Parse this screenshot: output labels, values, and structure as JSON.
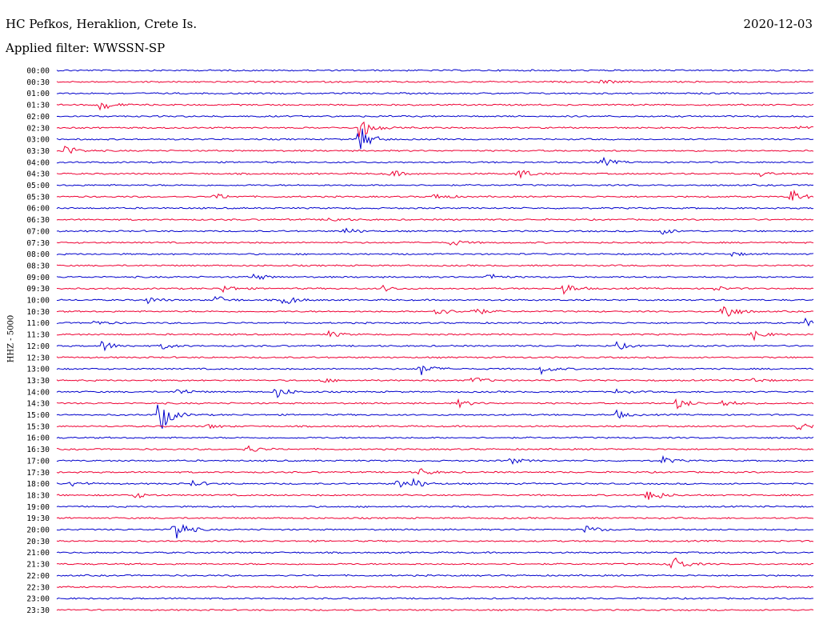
{
  "header": {
    "station": "HC Pefkos, Heraklion, Crete Is.",
    "filter": "Applied filter: WWSSN-SP",
    "date": "2020-12-03",
    "channel": "HHZ - 5000"
  },
  "colors": {
    "odd_trace": "#0000cc",
    "even_trace": "#ee0033"
  },
  "chart_data": {
    "type": "line",
    "x_axis": "time within each 30-minute line",
    "rows": [
      {
        "label": "00:00",
        "events": []
      },
      {
        "label": "00:30",
        "events": [
          {
            "t": 0.72,
            "a": 3
          }
        ]
      },
      {
        "label": "01:00",
        "events": []
      },
      {
        "label": "01:30",
        "events": [
          {
            "t": 0.058,
            "a": 8
          }
        ]
      },
      {
        "label": "02:00",
        "events": []
      },
      {
        "label": "02:30",
        "events": [
          {
            "t": 0.4,
            "a": 15
          },
          {
            "t": 0.98,
            "a": 3
          }
        ]
      },
      {
        "label": "03:00",
        "events": [
          {
            "t": 0.4,
            "a": 18
          }
        ]
      },
      {
        "label": "03:30",
        "events": [
          {
            "t": 0.01,
            "a": 8
          }
        ]
      },
      {
        "label": "04:00",
        "events": [
          {
            "t": 0.72,
            "a": 6
          }
        ]
      },
      {
        "label": "04:30",
        "events": [
          {
            "t": 0.44,
            "a": 5
          },
          {
            "t": 0.61,
            "a": 8
          },
          {
            "t": 0.93,
            "a": 3
          }
        ]
      },
      {
        "label": "05:00",
        "events": []
      },
      {
        "label": "05:30",
        "events": [
          {
            "t": 0.21,
            "a": 4
          },
          {
            "t": 0.5,
            "a": 5
          },
          {
            "t": 0.97,
            "a": 10
          }
        ]
      },
      {
        "label": "06:00",
        "events": []
      },
      {
        "label": "06:30",
        "events": [
          {
            "t": 0.36,
            "a": 4
          }
        ]
      },
      {
        "label": "07:00",
        "events": [
          {
            "t": 0.38,
            "a": 5
          },
          {
            "t": 0.8,
            "a": 4
          }
        ]
      },
      {
        "label": "07:30",
        "events": [
          {
            "t": 0.52,
            "a": 5
          }
        ]
      },
      {
        "label": "08:00",
        "events": [
          {
            "t": 0.89,
            "a": 3
          }
        ]
      },
      {
        "label": "08:30",
        "events": []
      },
      {
        "label": "09:00",
        "events": [
          {
            "t": 0.26,
            "a": 5
          },
          {
            "t": 0.57,
            "a": 5
          }
        ]
      },
      {
        "label": "09:30",
        "events": [
          {
            "t": 0.22,
            "a": 5
          },
          {
            "t": 0.43,
            "a": 4
          },
          {
            "t": 0.67,
            "a": 8
          },
          {
            "t": 0.87,
            "a": 3
          }
        ]
      },
      {
        "label": "10:00",
        "events": [
          {
            "t": 0.21,
            "a": 6
          },
          {
            "t": 0.3,
            "a": 8
          },
          {
            "t": 0.12,
            "a": 4
          }
        ]
      },
      {
        "label": "10:30",
        "events": [
          {
            "t": 0.5,
            "a": 7
          },
          {
            "t": 0.55,
            "a": 6
          },
          {
            "t": 0.88,
            "a": 14
          }
        ]
      },
      {
        "label": "11:00",
        "events": [
          {
            "t": 0.05,
            "a": 3
          },
          {
            "t": 0.99,
            "a": 6
          }
        ]
      },
      {
        "label": "11:30",
        "events": [
          {
            "t": 0.36,
            "a": 4
          },
          {
            "t": 0.92,
            "a": 7
          }
        ]
      },
      {
        "label": "12:00",
        "events": [
          {
            "t": 0.06,
            "a": 7
          },
          {
            "t": 0.14,
            "a": 4
          },
          {
            "t": 0.74,
            "a": 5
          }
        ]
      },
      {
        "label": "12:30",
        "events": []
      },
      {
        "label": "13:00",
        "events": [
          {
            "t": 0.48,
            "a": 9
          },
          {
            "t": 0.64,
            "a": 6
          }
        ]
      },
      {
        "label": "13:30",
        "events": [
          {
            "t": 0.35,
            "a": 3
          },
          {
            "t": 0.55,
            "a": 5
          },
          {
            "t": 0.92,
            "a": 3
          }
        ]
      },
      {
        "label": "14:00",
        "events": [
          {
            "t": 0.16,
            "a": 5
          },
          {
            "t": 0.29,
            "a": 8
          },
          {
            "t": 0.74,
            "a": 3
          }
        ]
      },
      {
        "label": "14:30",
        "events": [
          {
            "t": 0.53,
            "a": 5
          },
          {
            "t": 0.82,
            "a": 8
          },
          {
            "t": 0.88,
            "a": 5
          }
        ]
      },
      {
        "label": "15:00",
        "events": [
          {
            "t": 0.135,
            "a": 26
          },
          {
            "t": 0.74,
            "a": 5
          }
        ]
      },
      {
        "label": "15:30",
        "events": [
          {
            "t": 0.2,
            "a": 3
          },
          {
            "t": 0.98,
            "a": 6
          }
        ]
      },
      {
        "label": "16:00",
        "events": []
      },
      {
        "label": "16:30",
        "events": [
          {
            "t": 0.25,
            "a": 6
          }
        ]
      },
      {
        "label": "17:00",
        "events": [
          {
            "t": 0.6,
            "a": 4
          },
          {
            "t": 0.8,
            "a": 5
          }
        ]
      },
      {
        "label": "17:30",
        "events": [
          {
            "t": 0.48,
            "a": 5
          }
        ]
      },
      {
        "label": "18:00",
        "events": [
          {
            "t": 0.02,
            "a": 4
          },
          {
            "t": 0.18,
            "a": 4
          },
          {
            "t": 0.45,
            "a": 6
          },
          {
            "t": 0.47,
            "a": 6
          }
        ]
      },
      {
        "label": "18:30",
        "events": [
          {
            "t": 0.1,
            "a": 5
          },
          {
            "t": 0.78,
            "a": 12
          }
        ]
      },
      {
        "label": "19:00",
        "events": []
      },
      {
        "label": "19:30",
        "events": []
      },
      {
        "label": "20:00",
        "events": [
          {
            "t": 0.155,
            "a": 18
          },
          {
            "t": 0.7,
            "a": 6
          }
        ]
      },
      {
        "label": "20:30",
        "events": []
      },
      {
        "label": "21:00",
        "events": []
      },
      {
        "label": "21:30",
        "events": [
          {
            "t": 0.81,
            "a": 16
          }
        ]
      },
      {
        "label": "22:00",
        "events": []
      },
      {
        "label": "22:30",
        "events": []
      },
      {
        "label": "23:00",
        "events": []
      },
      {
        "label": "23:30",
        "events": []
      }
    ]
  }
}
